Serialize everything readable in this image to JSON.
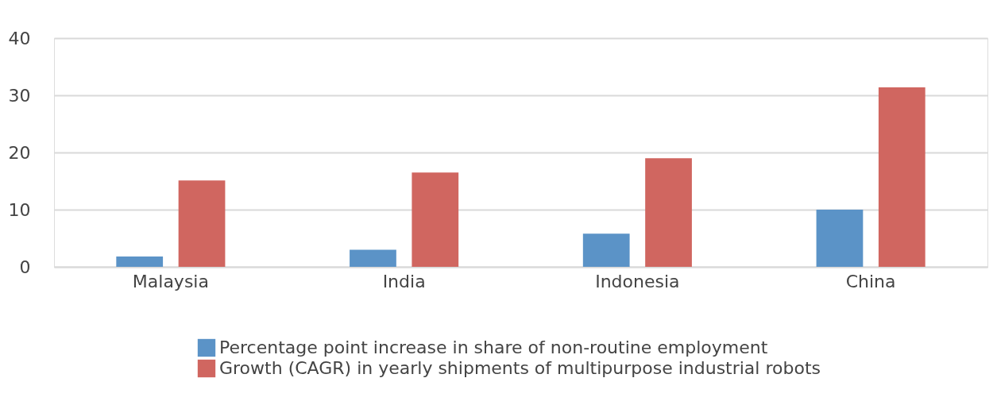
{
  "chart_data": {
    "type": "bar",
    "categories": [
      "Malaysia",
      "India",
      "Indonesia",
      "China"
    ],
    "series": [
      {
        "name": "Percentage point increase in share of non-routine employment",
        "color": "#5b93c7",
        "values": [
          1.8,
          3.0,
          5.8,
          10.0
        ]
      },
      {
        "name": "Growth (CAGR) in yearly shipments of multipurpose industrial robots",
        "color": "#d06660",
        "values": [
          15.1,
          16.5,
          19.0,
          31.4
        ]
      }
    ],
    "ylim": [
      0,
      40
    ],
    "yticks": [
      0,
      10,
      20,
      30,
      40
    ],
    "grid": "y",
    "legend": "bottom"
  }
}
